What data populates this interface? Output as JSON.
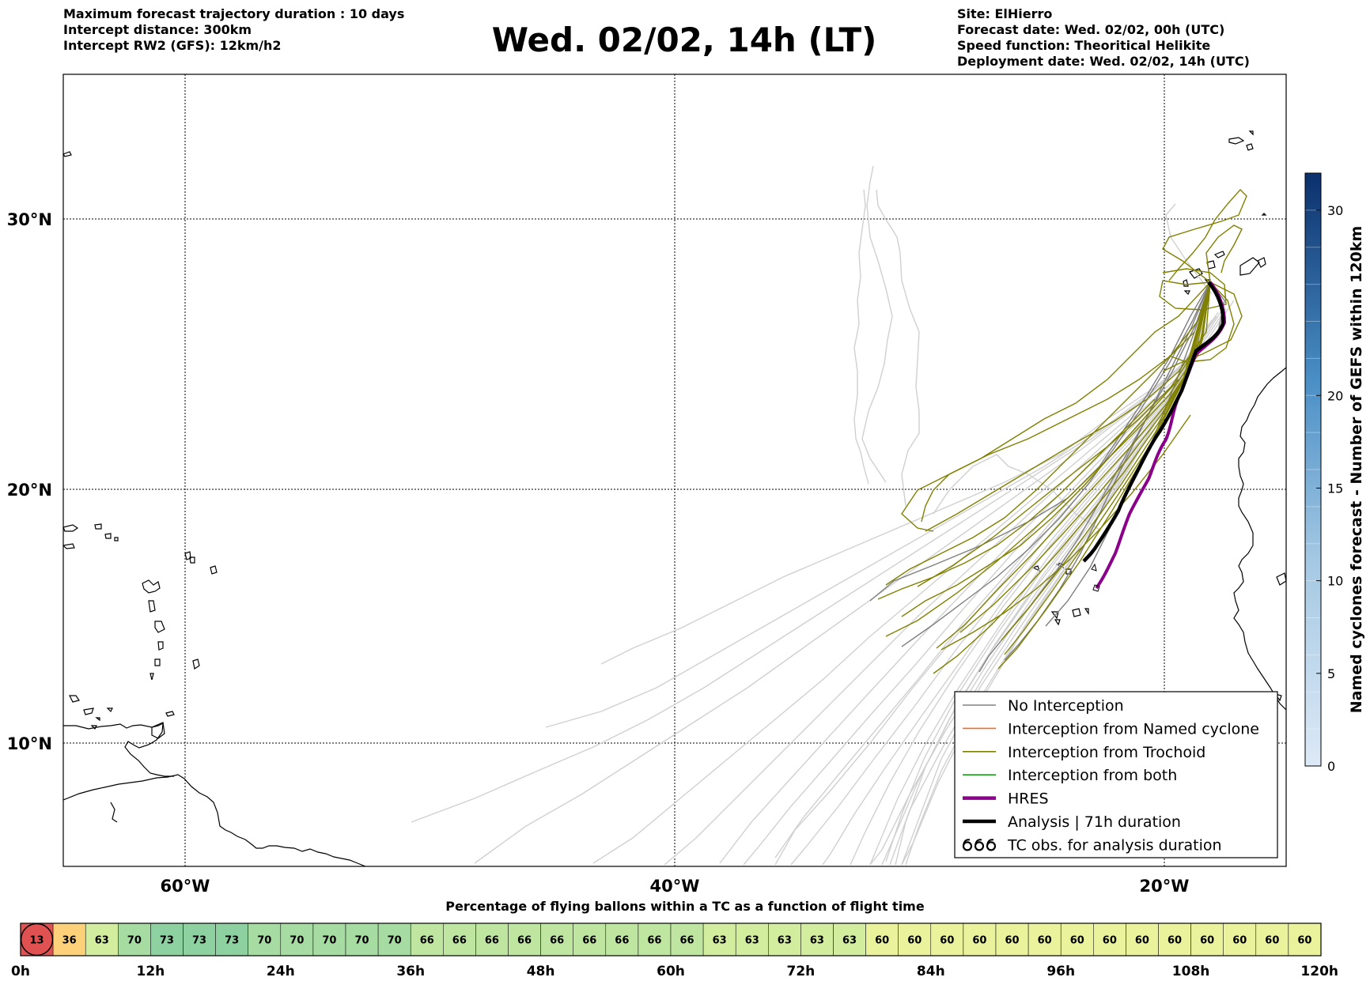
{
  "header": {
    "left_lines": [
      "Maximum forecast trajectory duration : 10 days",
      "Intercept distance: 300km",
      "Intercept RW2 (GFS):  12km/h2"
    ],
    "title": "Wed. 02/02, 14h (LT)",
    "right_lines": [
      "Site: ElHierro",
      "Forecast date: Wed. 02/02, 00h (UTC)",
      "Speed function: Theoritical Helikite",
      "Deployment date: Wed. 02/02, 14h (UTC)"
    ]
  },
  "map": {
    "lon_labels": [
      "60°W",
      "40°W",
      "20°W"
    ],
    "lat_labels": [
      "30°N",
      "20°N",
      "10°N"
    ]
  },
  "legend": {
    "items": [
      {
        "label": "No Interception",
        "color": "#808080",
        "style": "line"
      },
      {
        "label": "Interception from Named cyclone",
        "color": "#ff6a1a",
        "style": "line"
      },
      {
        "label": "Interception from Trochoid",
        "color": "#808000",
        "style": "line"
      },
      {
        "label": "Interception from both",
        "color": "#1a9e1a",
        "style": "line"
      },
      {
        "label": "HRES",
        "color": "#8b008b",
        "style": "thick"
      },
      {
        "label": "Analysis | 71h duration",
        "color": "#000000",
        "style": "thick"
      },
      {
        "label": "TC obs. for analysis duration",
        "color": "#000000",
        "style": "cyclone-symbol"
      }
    ]
  },
  "colorbar": {
    "label": "Named cyclones forecast - Number of GEFS within 120km",
    "ticks": [
      "0",
      "5",
      "10",
      "15",
      "20",
      "30"
    ],
    "color_low": "#dde9f6",
    "color_high": "#0b306b"
  },
  "timebar": {
    "title": "Percentage of flying ballons within a TC as a function of flight time",
    "values": [
      13,
      36,
      63,
      70,
      73,
      73,
      73,
      70,
      70,
      70,
      70,
      70,
      66,
      66,
      66,
      66,
      66,
      66,
      66,
      66,
      66,
      63,
      63,
      63,
      63,
      63,
      60,
      60,
      60,
      60,
      60,
      60,
      60,
      60,
      60,
      60,
      60,
      60,
      60,
      60
    ],
    "tick_labels": [
      "0h",
      "12h",
      "24h",
      "36h",
      "48h",
      "60h",
      "72h",
      "84h",
      "96h",
      "108h",
      "120h"
    ]
  }
}
